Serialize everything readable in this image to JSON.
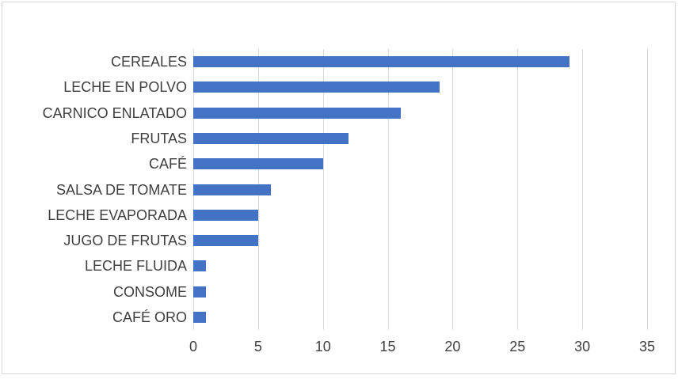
{
  "chart_data": {
    "type": "bar",
    "orientation": "horizontal",
    "title": "",
    "xlabel": "",
    "ylabel": "",
    "categories": [
      "CEREALES",
      "LECHE EN POLVO",
      "CARNICO ENLATADO",
      "FRUTAS",
      "CAFÉ",
      "SALSA DE TOMATE",
      "LECHE EVAPORADA",
      "JUGO DE FRUTAS",
      "LECHE FLUIDA",
      "CONSOME",
      "CAFÉ ORO"
    ],
    "values": [
      29,
      19,
      16,
      12,
      10,
      6,
      5,
      5,
      1,
      1,
      1
    ],
    "xlim": [
      0,
      35
    ],
    "xticks": [
      0,
      5,
      10,
      15,
      20,
      25,
      30,
      35
    ],
    "grid": true,
    "legend": false,
    "colors": {
      "bar": "#4472c4",
      "gridline": "#d9d9d9",
      "text": "#3f3f3f",
      "frame_border": "#d6d6d6",
      "background": "#ffffff"
    }
  }
}
